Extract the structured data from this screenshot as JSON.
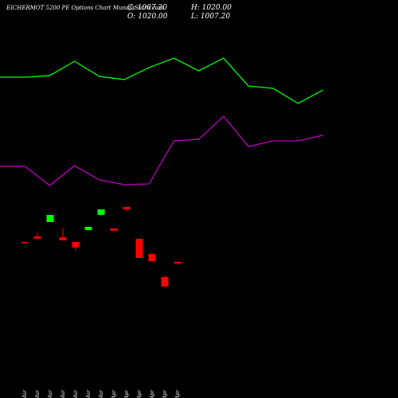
{
  "chart_data": [
    {
      "type": "candlestick",
      "title": "EICHERMOT 5200 PE Options Chart MunafaSutra.com",
      "info": [
        "C: 1007.20",
        "H: 1020.00",
        "O: 1020.00",
        "L: 1007.20"
      ],
      "categories": [
        "17 Mar",
        "20 Mar",
        "21 Mar",
        "24 Mar",
        "25 Mar",
        "27 Mar",
        "28 Mar",
        "01 Apr",
        "07 Apr",
        "08 Apr",
        "09 Apr",
        "16 Apr",
        "17 Apr"
      ],
      "open": [
        1180,
        1225,
        1340,
        1218,
        1180,
        1276,
        1398,
        1289,
        1462,
        1206,
        1084,
        898,
        1020
      ],
      "close": [
        1174,
        1206,
        1398,
        1193,
        1135,
        1302,
        1442,
        1270,
        1442,
        1052,
        1026,
        822,
        1007.2
      ],
      "high": [
        1180,
        1257,
        1398,
        1295,
        1180,
        1302,
        1442,
        1289,
        1462,
        1206,
        1090,
        911,
        1020
      ],
      "low": [
        1174,
        1206,
        1340,
        1193,
        1110,
        1276,
        1391,
        1270,
        1430,
        1052,
        1020,
        822,
        1007.2
      ],
      "up_color": "#00ff00",
      "down_color": "#ff0000",
      "ylim": [
        -74.4,
        3125.6
      ]
    },
    {
      "type": "line",
      "categories": [
        null,
        null,
        null,
        null,
        null,
        null,
        null,
        null,
        null,
        null,
        null,
        null,
        null,
        null
      ],
      "series": [
        {
          "color": "#00ff00",
          "values": [
            2505,
            2505,
            2518,
            2633,
            2511,
            2486,
            2582,
            2658,
            2556,
            2658,
            2434,
            2415,
            2294,
            2402
          ]
        },
        {
          "color": "#c000c0",
          "values": [
            1788,
            1788,
            1634,
            1794,
            1679,
            1641,
            1647,
            1993,
            2006,
            2191,
            1948,
            1993,
            1993,
            2038
          ]
        }
      ],
      "ylim": [
        -74.4,
        3125.6
      ]
    }
  ]
}
